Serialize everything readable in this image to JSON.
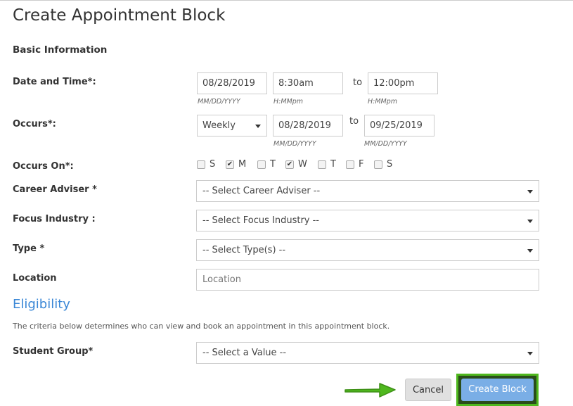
{
  "title": "Create Appointment Block",
  "basic_info": "Basic Information",
  "date_time": {
    "label": "Date and Time*:",
    "date": "08/28/2019",
    "date_hint": "MM/DD/YYYY",
    "start": "8:30am",
    "start_hint": "H:MMpm",
    "to": "to",
    "end": "12:00pm",
    "end_hint": "H:MMpm"
  },
  "occurs": {
    "label": "Occurs*:",
    "frequency": "Weekly",
    "start": "08/28/2019",
    "start_hint": "MM/DD/YYYY",
    "to": "to",
    "end": "09/25/2019",
    "end_hint": "MM/DD/YYYY"
  },
  "occurs_on": {
    "label": "Occurs On*:",
    "days": [
      {
        "d": "S",
        "checked": false
      },
      {
        "d": "M",
        "checked": true
      },
      {
        "d": "T",
        "checked": false
      },
      {
        "d": "W",
        "checked": true
      },
      {
        "d": "T",
        "checked": false
      },
      {
        "d": "F",
        "checked": false
      },
      {
        "d": "S",
        "checked": false
      }
    ]
  },
  "career_adviser": {
    "label": "Career Adviser *",
    "value": "-- Select Career Adviser --"
  },
  "focus_industry": {
    "label": "Focus Industry :",
    "value": "-- Select Focus Industry --"
  },
  "type": {
    "label": "Type *",
    "value": "-- Select Type(s) --"
  },
  "location": {
    "label": "Location",
    "placeholder": "Location"
  },
  "eligibility": {
    "heading": "Eligibility",
    "description": "The criteria below determines who can view and book an appointment in this appointment block."
  },
  "student_group": {
    "label": "Student Group*",
    "value": "-- Select a Value --"
  },
  "buttons": {
    "cancel": "Cancel",
    "create": "Create Block"
  },
  "colors": {
    "accent": "#3a87d6",
    "primary_button": "#7aaee6",
    "highlight": "#4fb81e"
  }
}
